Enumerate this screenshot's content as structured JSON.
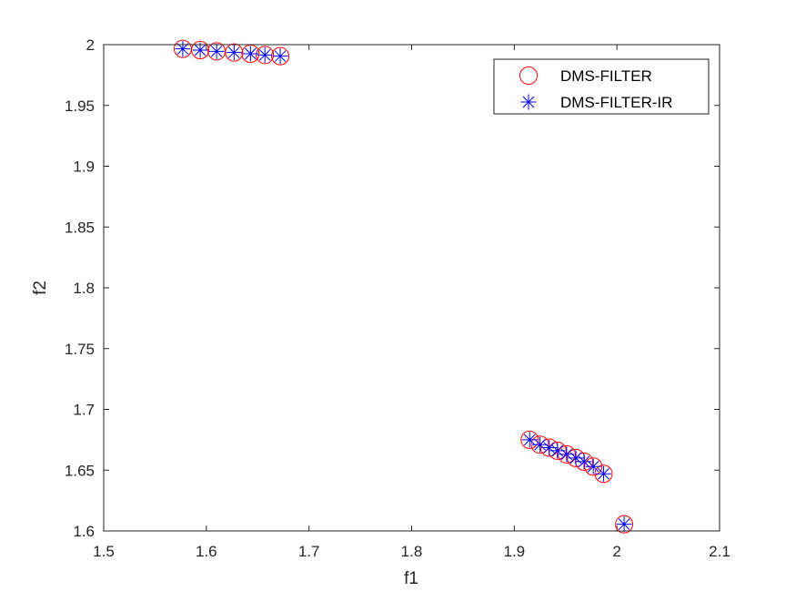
{
  "chart_data": {
    "type": "scatter",
    "title": "",
    "xlabel": "f1",
    "ylabel": "f2",
    "xlim": [
      1.5,
      2.1
    ],
    "ylim": [
      1.6,
      2.0
    ],
    "xticks": [
      "1.5",
      "1.6",
      "1.7",
      "1.8",
      "1.9",
      "2",
      "2.1"
    ],
    "yticks": [
      "1.6",
      "1.65",
      "1.7",
      "1.75",
      "1.8",
      "1.85",
      "1.9",
      "1.95",
      "2"
    ],
    "grid": false,
    "legend_position": "top-right",
    "series": [
      {
        "name": "DMS-FILTER",
        "marker": "circle",
        "color": "#ff0000",
        "points": [
          [
            1.577,
            1.9965
          ],
          [
            1.594,
            1.9955
          ],
          [
            1.61,
            1.9945
          ],
          [
            1.627,
            1.9935
          ],
          [
            1.643,
            1.9925
          ],
          [
            1.657,
            1.9915
          ],
          [
            1.672,
            1.9905
          ],
          [
            1.915,
            1.675
          ],
          [
            1.925,
            1.671
          ],
          [
            1.934,
            1.6685
          ],
          [
            1.942,
            1.666
          ],
          [
            1.951,
            1.663
          ],
          [
            1.96,
            1.66
          ],
          [
            1.968,
            1.657
          ],
          [
            1.977,
            1.653
          ],
          [
            1.987,
            1.647
          ],
          [
            2.007,
            1.6055
          ]
        ]
      },
      {
        "name": "DMS-FILTER-IR",
        "marker": "asterisk",
        "color": "#0000ff",
        "points": [
          [
            1.577,
            1.9965
          ],
          [
            1.594,
            1.9955
          ],
          [
            1.61,
            1.9945
          ],
          [
            1.627,
            1.9935
          ],
          [
            1.643,
            1.9925
          ],
          [
            1.657,
            1.9915
          ],
          [
            1.672,
            1.9905
          ],
          [
            1.915,
            1.675
          ],
          [
            1.925,
            1.671
          ],
          [
            1.934,
            1.6685
          ],
          [
            1.942,
            1.666
          ],
          [
            1.951,
            1.663
          ],
          [
            1.96,
            1.66
          ],
          [
            1.968,
            1.657
          ],
          [
            1.977,
            1.653
          ],
          [
            1.987,
            1.647
          ],
          [
            2.007,
            1.6055
          ]
        ]
      }
    ]
  }
}
